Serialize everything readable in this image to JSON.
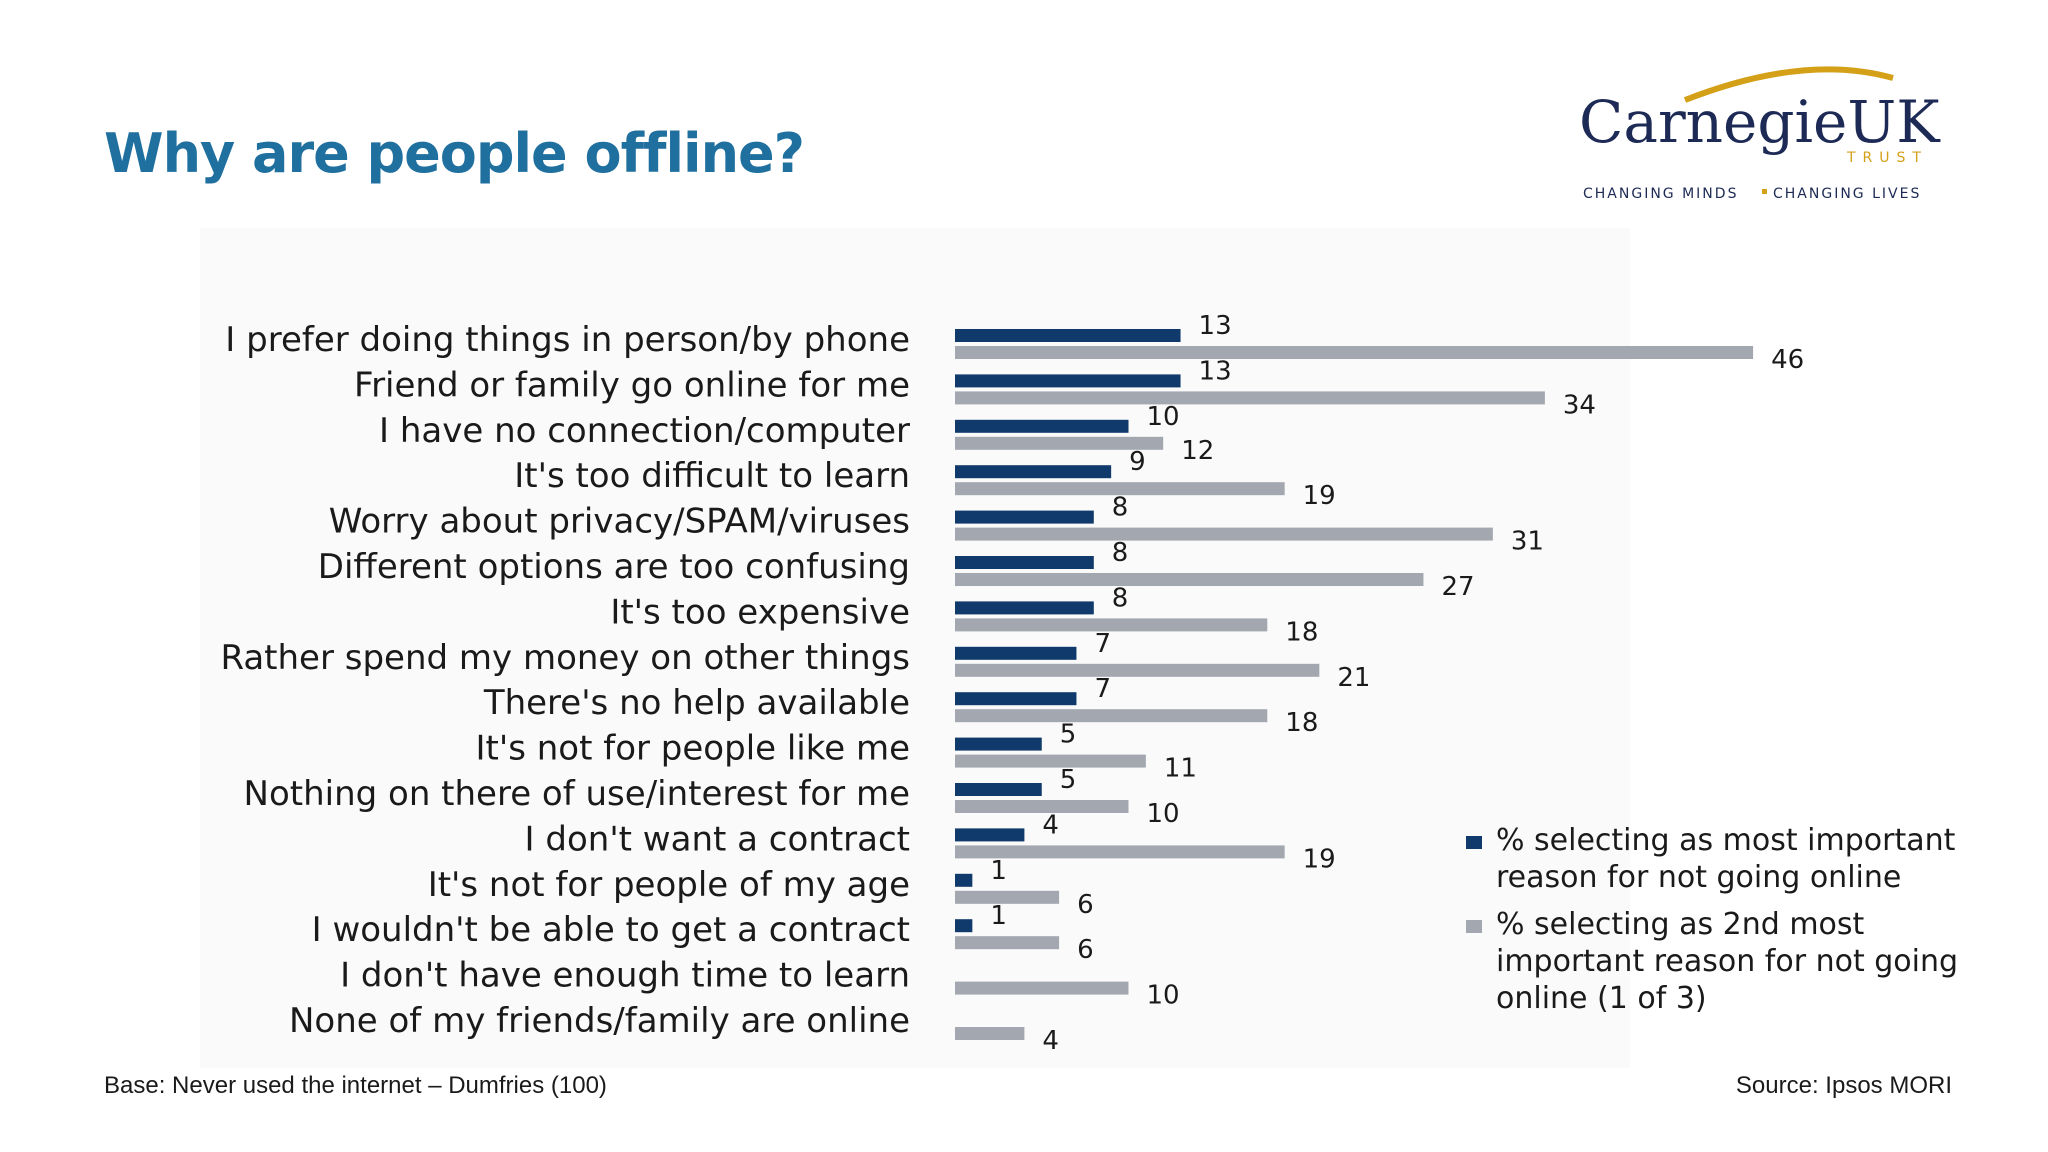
{
  "slide": {
    "title": "Why are people offline?",
    "base_note": "Base: Never used the internet –  Dumfries (100)",
    "source_note": "Source: Ipsos MORI"
  },
  "logo": {
    "name": "CarnegieUK",
    "trust": "TRUST",
    "tagline_left": "CHANGING MINDS",
    "tagline_right": "CHANGING LIVES"
  },
  "colors": {
    "title": "#1f6f9f",
    "series_most": "#103a6b",
    "series_second": "#a3a8b0",
    "logo_text": "#1d2a55",
    "logo_arc": "#d4a017"
  },
  "chart_data": {
    "type": "bar",
    "orientation": "horizontal",
    "categories": [
      "I prefer doing things in person/by phone",
      "Friend or family go online for me",
      "I have no connection/computer",
      "It's too difficult to learn",
      "Worry about privacy/SPAM/viruses",
      "Different options are too confusing",
      "It's too expensive",
      "Rather spend my money on other things",
      "There's no help available",
      "It's not for people like me",
      "Nothing on there of use/interest for me",
      "I don't want a contract",
      "It's not for people of my age",
      "I wouldn't be able to get a contract",
      "I don't have enough time to learn",
      "None of my friends/family are online"
    ],
    "series": [
      {
        "name": "% selecting as most important reason for not going online",
        "values": [
          13,
          13,
          10,
          9,
          8,
          8,
          8,
          7,
          7,
          5,
          5,
          4,
          1,
          1,
          null,
          null
        ]
      },
      {
        "name": "% selecting as 2nd most important reason for not going online (1 of 3)",
        "values": [
          46,
          34,
          12,
          19,
          31,
          27,
          18,
          21,
          18,
          11,
          10,
          19,
          6,
          6,
          10,
          4
        ]
      }
    ],
    "xlim": [
      0,
      50
    ],
    "grid": false,
    "legend_position": "bottom-right"
  }
}
